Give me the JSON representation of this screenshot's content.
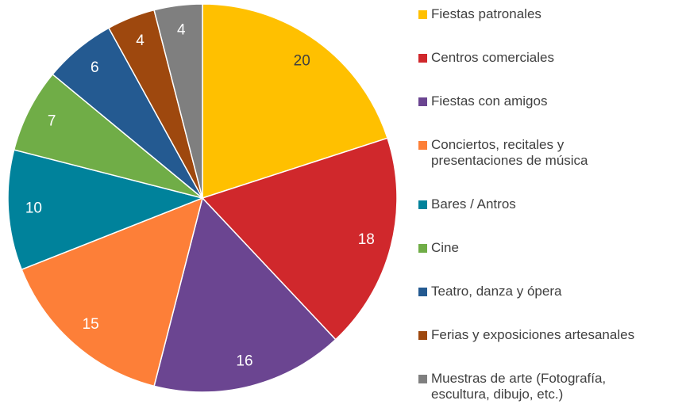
{
  "chart_data": {
    "type": "pie",
    "categories": [
      "Fiestas patronales",
      "Centros comerciales",
      "Fiestas con amigos",
      "Conciertos, recitales y presentaciones de música",
      "Bares / Antros",
      "Cine",
      "Teatro, danza y ópera",
      "Ferias y exposiciones artesanales",
      "Muestras de arte (Fotografía, escultura, dibujo, etc.)"
    ],
    "values": [
      20,
      18,
      16,
      15,
      10,
      7,
      6,
      4,
      4
    ],
    "colors": [
      "#ffc000",
      "#d0282c",
      "#6b4591",
      "#fd7f38",
      "#00829b",
      "#70ad47",
      "#245a91",
      "#9e480e",
      "#7f7f7f"
    ],
    "legend": "right"
  }
}
